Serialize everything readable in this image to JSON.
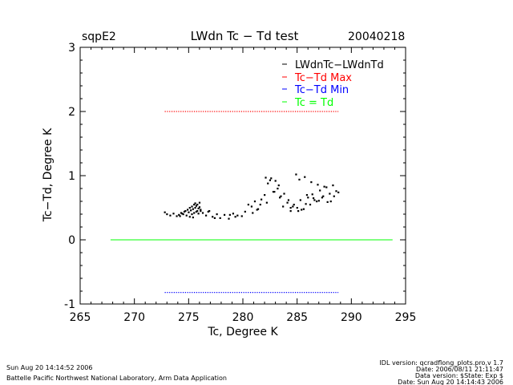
{
  "header": {
    "station": "sqpE2",
    "title": "LWdn Tc − Td test",
    "date": "20040218"
  },
  "footer": {
    "left_line1": "Sun Aug 20 14:14:52 2006",
    "left_line2": "Battelle Pacific Northwest National Laboratory, Arm Data Application",
    "right_line1": "IDL version: qcradflong_plots.pro,v 1.7",
    "right_line2": "Date: 2006/08/11 21:11:47",
    "right_line3": "Data version: $State: Exp $",
    "right_line4": "Date: Sun Aug 20 14:14:43 2006"
  },
  "colors": {
    "data": "#000000",
    "max": "#ff0000",
    "min": "#0000ff",
    "equal": "#00ff00"
  },
  "chart_data": {
    "type": "scatter",
    "title": "LWdn Tc − Td test",
    "xlabel": "Tc, Degree K",
    "ylabel": "Tc−Td, Degree K",
    "xlim": [
      265,
      295
    ],
    "ylim": [
      -1,
      3
    ],
    "xticks": [
      265,
      270,
      275,
      280,
      285,
      290,
      295
    ],
    "yticks": [
      -1,
      0,
      1,
      2,
      3
    ],
    "legend_position": "top-right",
    "legend": [
      {
        "label": "LWdnTc−LWdnTd",
        "color": "#000000"
      },
      {
        "label": "Tc−Td Max",
        "color": "#ff0000"
      },
      {
        "label": "Tc−Td Min",
        "color": "#0000ff"
      },
      {
        "label": "Tc = Td",
        "color": "#00ff00"
      }
    ],
    "series": [
      {
        "name": "LWdnTc−LWdnTd",
        "style": "points",
        "x": [
          272.8,
          273.0,
          273.3,
          273.6,
          273.9,
          274.1,
          274.3,
          274.5,
          274.7,
          274.9,
          275.0,
          275.1,
          275.2,
          275.3,
          275.4,
          275.5,
          275.6,
          275.7,
          275.8,
          275.9,
          276.0,
          276.1,
          275.3,
          275.5,
          275.7,
          275.9,
          276.1,
          275.6,
          275.8,
          276.0,
          274.8,
          275.1,
          275.4,
          274.6,
          274.4,
          274.2,
          276.3,
          276.6,
          276.9,
          277.2,
          277.6,
          277.9,
          278.3,
          278.7,
          279.1,
          279.5,
          279.9,
          280.2,
          280.5,
          280.8,
          281.1,
          281.4,
          281.7,
          282.0,
          282.3,
          282.6,
          282.9,
          283.2,
          283.5,
          283.8,
          284.1,
          284.4,
          284.7,
          285.0,
          285.3,
          285.6,
          285.9,
          286.2,
          286.5,
          286.8,
          287.1,
          287.4,
          287.7,
          288.0,
          288.3,
          288.6,
          288.8,
          282.1,
          282.5,
          283.0,
          283.4,
          284.9,
          285.2,
          285.7,
          286.3,
          286.9,
          287.5,
          288.1,
          284.6,
          285.1,
          285.8,
          286.6,
          287.3,
          283.7,
          284.2,
          281.6,
          280.9,
          281.3,
          279.3,
          278.8,
          277.4,
          276.8,
          286.0,
          286.4,
          287.0,
          287.8,
          288.4,
          284.4,
          285.4,
          282.8,
          283.3,
          282.2
        ],
        "y": [
          0.43,
          0.4,
          0.38,
          0.41,
          0.37,
          0.39,
          0.42,
          0.4,
          0.45,
          0.47,
          0.43,
          0.5,
          0.46,
          0.52,
          0.48,
          0.55,
          0.5,
          0.53,
          0.45,
          0.49,
          0.51,
          0.47,
          0.4,
          0.42,
          0.44,
          0.41,
          0.45,
          0.57,
          0.55,
          0.58,
          0.38,
          0.36,
          0.35,
          0.44,
          0.41,
          0.37,
          0.42,
          0.38,
          0.45,
          0.36,
          0.4,
          0.34,
          0.39,
          0.33,
          0.41,
          0.38,
          0.37,
          0.44,
          0.55,
          0.52,
          0.6,
          0.48,
          0.63,
          0.7,
          0.88,
          0.96,
          0.75,
          0.8,
          0.68,
          0.72,
          0.58,
          0.45,
          0.55,
          0.5,
          0.62,
          0.48,
          0.7,
          0.55,
          0.65,
          0.6,
          0.77,
          0.68,
          0.82,
          0.72,
          0.85,
          0.76,
          0.74,
          0.97,
          0.93,
          0.92,
          0.66,
          1.02,
          0.94,
          0.98,
          0.9,
          0.86,
          0.83,
          0.6,
          0.52,
          0.45,
          0.56,
          0.62,
          0.66,
          0.52,
          0.62,
          0.55,
          0.42,
          0.47,
          0.36,
          0.39,
          0.34,
          0.44,
          0.66,
          0.71,
          0.61,
          0.59,
          0.68,
          0.5,
          0.47,
          0.75,
          0.85,
          0.58
        ]
      },
      {
        "name": "Tc−Td Max",
        "style": "dotted",
        "x": [
          272.8,
          288.8
        ],
        "y": [
          2.0,
          2.0
        ]
      },
      {
        "name": "Tc−Td Min",
        "style": "dotted",
        "x": [
          272.8,
          288.8
        ],
        "y": [
          -0.82,
          -0.82
        ]
      },
      {
        "name": "Tc = Td",
        "style": "line",
        "x": [
          267.8,
          293.8
        ],
        "y": [
          0,
          0
        ]
      }
    ]
  }
}
